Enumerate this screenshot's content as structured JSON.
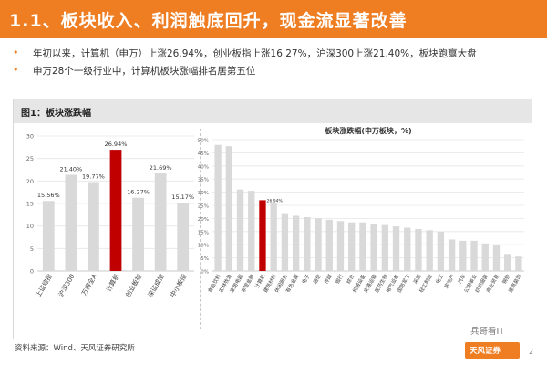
{
  "header": {
    "title": "1.1、板块收入、利润触底回升，现金流显著改善"
  },
  "bullets": [
    "年初以来，计算机（申万）上涨26.94%，创业板指上涨16.27%，沪深300上涨21.40%，板块跑赢大盘",
    "申万28个一级行业中，计算机板块涨幅排名居第五位"
  ],
  "figure": {
    "label": "图1：板块涨跌幅"
  },
  "chart_data": [
    {
      "type": "bar",
      "title": "",
      "categories": [
        "上证综指",
        "沪深300",
        "万得全A",
        "计算机",
        "创业板指",
        "深证成指",
        "中小板指"
      ],
      "values": [
        15.56,
        21.4,
        19.77,
        26.94,
        16.27,
        21.69,
        15.17
      ],
      "value_labels": [
        "15.56%",
        "21.40%",
        "19.77%",
        "26.94%",
        "16.27%",
        "21.69%",
        "15.17%"
      ],
      "highlight_index": 3,
      "ylim": [
        0,
        30
      ],
      "yticks": [
        0,
        5,
        10,
        15,
        20,
        25,
        30
      ],
      "ytick_labels": [
        "0",
        "5",
        "10",
        "15",
        "20",
        "25",
        "30"
      ],
      "grid": true,
      "colors": {
        "bar": "#d9d9d9",
        "highlight": "#c00000",
        "grid": "#e6e6e6"
      }
    },
    {
      "type": "bar",
      "title": "板块涨跌幅(申万板块，%)",
      "categories": [
        "食品饮料",
        "农林牧渔",
        "家用电器",
        "非银金融",
        "计算机",
        "建筑材料",
        "休闲服务",
        "有色金属",
        "电子",
        "通信",
        "传媒",
        "银行",
        "综合",
        "机械设备",
        "交通运输",
        "医药生物",
        "电气设备",
        "国防军工",
        "采掘",
        "轻工制造",
        "化工",
        "房地产",
        "汽车",
        "公用事业",
        "纺织服装",
        "商业贸易",
        "钢铁",
        "建筑装饰"
      ],
      "values": [
        48,
        47.5,
        31,
        30.5,
        26.94,
        26,
        22,
        21,
        20.5,
        20,
        19.5,
        19,
        18.5,
        18.5,
        18,
        17.5,
        17,
        16.5,
        16,
        15.5,
        15,
        12,
        11.5,
        11.5,
        10.5,
        10,
        6.5,
        5.5
      ],
      "highlight_index": 4,
      "highlight_label": "26.94%",
      "ylim": [
        0,
        50
      ],
      "yticks": [
        0,
        5,
        10,
        15,
        20,
        25,
        30,
        35,
        40,
        45,
        50
      ],
      "ytick_labels": [
        "0%",
        "5%",
        "10%",
        "15%",
        "20%",
        "25%",
        "30%",
        "35%",
        "40%",
        "45%",
        "50%"
      ],
      "grid": true,
      "colors": {
        "bar": "#d9d9d9",
        "highlight": "#c00000",
        "grid": "#e6e6e6"
      }
    }
  ],
  "footer": {
    "source": "资料来源：Wind、天风证券研究所",
    "wechat": "兵哥看IT",
    "logo": "天风证券",
    "page": "2"
  }
}
